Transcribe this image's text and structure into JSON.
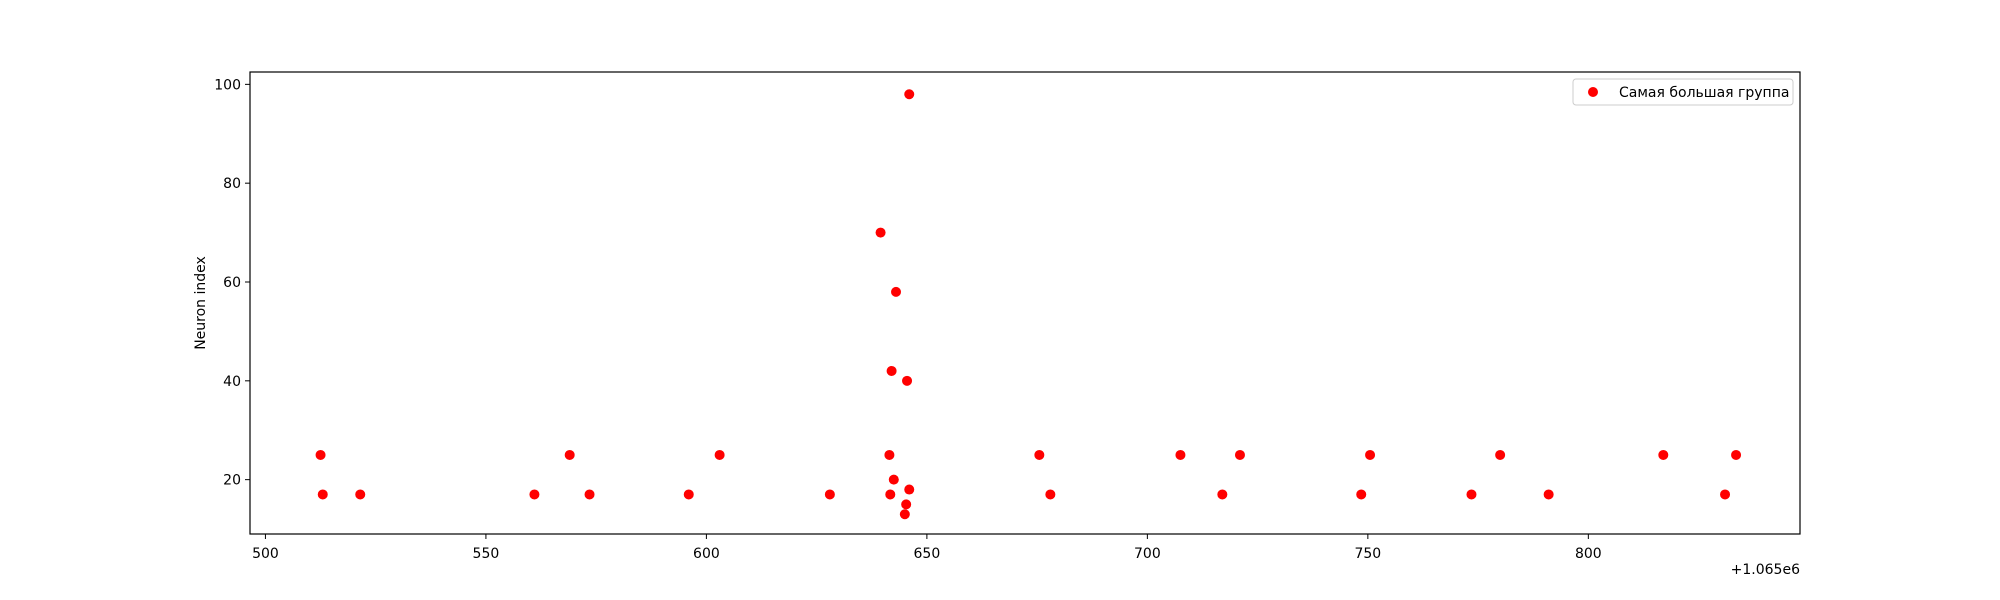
{
  "chart_data": {
    "type": "scatter",
    "ylabel": "Neuron index",
    "x_offset_label": "+1.065e6",
    "xlim": [
      496.5,
      848
    ],
    "ylim": [
      9,
      102.5
    ],
    "x_ticks": [
      500,
      550,
      600,
      650,
      700,
      750,
      800
    ],
    "y_ticks": [
      20,
      40,
      60,
      80,
      100
    ],
    "legend_position": "upper right",
    "grid": false,
    "series": [
      {
        "name": "Самая большая группа",
        "color": "#ff0000",
        "points": [
          {
            "x": 512.5,
            "y": 25
          },
          {
            "x": 513.0,
            "y": 17
          },
          {
            "x": 521.5,
            "y": 17
          },
          {
            "x": 561.0,
            "y": 17
          },
          {
            "x": 569.0,
            "y": 25
          },
          {
            "x": 573.5,
            "y": 17
          },
          {
            "x": 596.0,
            "y": 17
          },
          {
            "x": 603.0,
            "y": 25
          },
          {
            "x": 628.0,
            "y": 17
          },
          {
            "x": 639.5,
            "y": 70
          },
          {
            "x": 641.5,
            "y": 25
          },
          {
            "x": 641.7,
            "y": 17
          },
          {
            "x": 642.0,
            "y": 42
          },
          {
            "x": 642.5,
            "y": 20
          },
          {
            "x": 643.0,
            "y": 58
          },
          {
            "x": 645.0,
            "y": 13
          },
          {
            "x": 645.3,
            "y": 15
          },
          {
            "x": 645.5,
            "y": 40
          },
          {
            "x": 646.0,
            "y": 18
          },
          {
            "x": 646.0,
            "y": 98
          },
          {
            "x": 675.5,
            "y": 25
          },
          {
            "x": 678.0,
            "y": 17
          },
          {
            "x": 707.5,
            "y": 25
          },
          {
            "x": 717.0,
            "y": 17
          },
          {
            "x": 721.0,
            "y": 25
          },
          {
            "x": 748.5,
            "y": 17
          },
          {
            "x": 750.5,
            "y": 25
          },
          {
            "x": 773.5,
            "y": 17
          },
          {
            "x": 780.0,
            "y": 25
          },
          {
            "x": 791.0,
            "y": 17
          },
          {
            "x": 817.0,
            "y": 25
          },
          {
            "x": 831.0,
            "y": 17
          },
          {
            "x": 833.5,
            "y": 25
          }
        ]
      }
    ]
  }
}
